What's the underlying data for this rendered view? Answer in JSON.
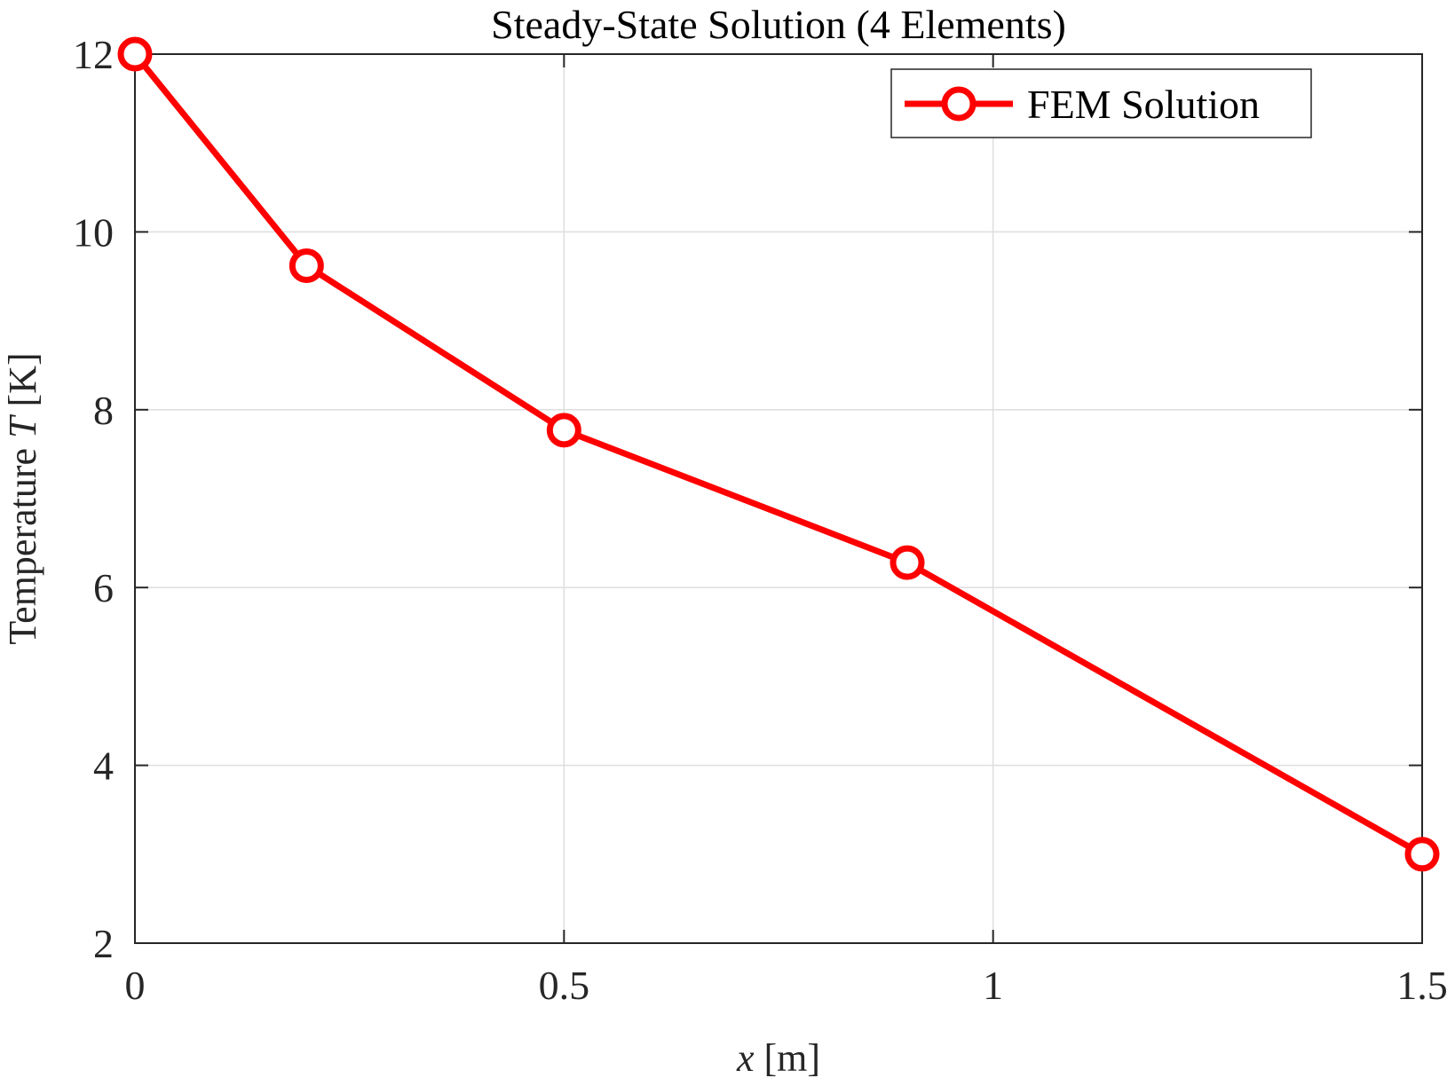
{
  "chart_data": {
    "type": "line",
    "title": "Steady-State Solution (4 Elements)",
    "xlabel_var": "x",
    "xlabel_unit": " [m]",
    "ylabel_prefix": "Temperature ",
    "ylabel_var": "T",
    "ylabel_unit": " [K]",
    "xlim": [
      0,
      1.5
    ],
    "ylim": [
      2,
      12
    ],
    "xticks": [
      0,
      0.5,
      1,
      1.5
    ],
    "xtick_labels": [
      "0",
      "0.5",
      "1",
      "1.5"
    ],
    "yticks": [
      2,
      4,
      6,
      8,
      10,
      12
    ],
    "ytick_labels": [
      "2",
      "4",
      "6",
      "8",
      "10",
      "12"
    ],
    "grid": true,
    "legend_position": "top-right",
    "series": [
      {
        "name": "FEM Solution",
        "color": "#ff0000",
        "marker": "circle",
        "x": [
          0,
          0.2,
          0.5,
          0.9,
          1.5
        ],
        "y": [
          12,
          9.62,
          7.77,
          6.28,
          3
        ]
      }
    ]
  }
}
